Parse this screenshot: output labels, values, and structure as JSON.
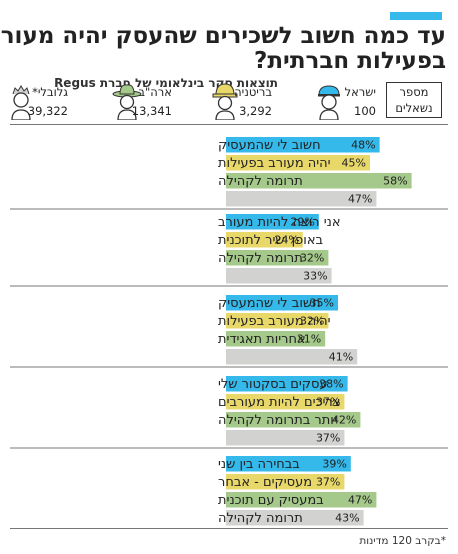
{
  "header": {
    "title_line1": "עד כמה חשוב לשכירים שהעסק יהיה מעורב",
    "title_line2": "בפעילות חברתית?",
    "subtitle": "תוצאות סקר בינלאומי של חברת Regus",
    "respondents_label_line1": "מספר",
    "respondents_label_line2": "נשאלים"
  },
  "legend": [
    {
      "name": "ישראל",
      "count": "100",
      "color": "#35b8ea",
      "icon": "person-cap-icon"
    },
    {
      "name": "בריטניה",
      "count": "3,292",
      "color": "#e8d86a",
      "icon": "person-hardhat-icon"
    },
    {
      "name": "ארה\"ב",
      "count": "13,341",
      "color": "#a5c98a",
      "icon": "person-cowboy-hat-icon"
    },
    {
      "name": "גלובלי*",
      "count": "39,322",
      "color": "#d2d2d0",
      "icon": "person-icon"
    }
  ],
  "footnote": "*בקרב 120 מדינות",
  "chart_data": {
    "type": "bar",
    "orientation": "horizontal",
    "unit": "%",
    "xlim": [
      0,
      60
    ],
    "series_names": [
      "ישראל",
      "בריטניה",
      "ארה\"ב",
      "גלובלי*"
    ],
    "series_colors": [
      "#35b8ea",
      "#e8d86a",
      "#a5c98a",
      "#d2d2d0"
    ],
    "groups": [
      {
        "label_lines": [
          "חשוב לי שהמעסיק",
          "יהיה מעורב בפעילות",
          "תרומה לקהילה"
        ],
        "values": [
          48,
          45,
          58,
          47
        ]
      },
      {
        "label_lines": [
          "אני רוצה להיות מעורב",
          "באופן ישיר לתוכנית",
          "תרומה לקהילה"
        ],
        "values": [
          29,
          24,
          32,
          33
        ]
      },
      {
        "label_lines": [
          "חשוב לי שהמעסיק",
          "יהיה מעורב בפעילות",
          "אחריות תאגידית"
        ],
        "values": [
          35,
          32,
          31,
          41
        ]
      },
      {
        "label_lines": [
          "עסקים בסקטור שלי",
          "צריכים להיות מעורבים",
          "יותר בתרומה לקהילה"
        ],
        "values": [
          38,
          37,
          42,
          37
        ]
      },
      {
        "label_lines": [
          "בבחירה בין שני",
          "מעסיקים - אבחר",
          "במעסיק עם תוכנית",
          "תרומה לקהילה"
        ],
        "values": [
          39,
          37,
          47,
          43
        ]
      }
    ]
  }
}
